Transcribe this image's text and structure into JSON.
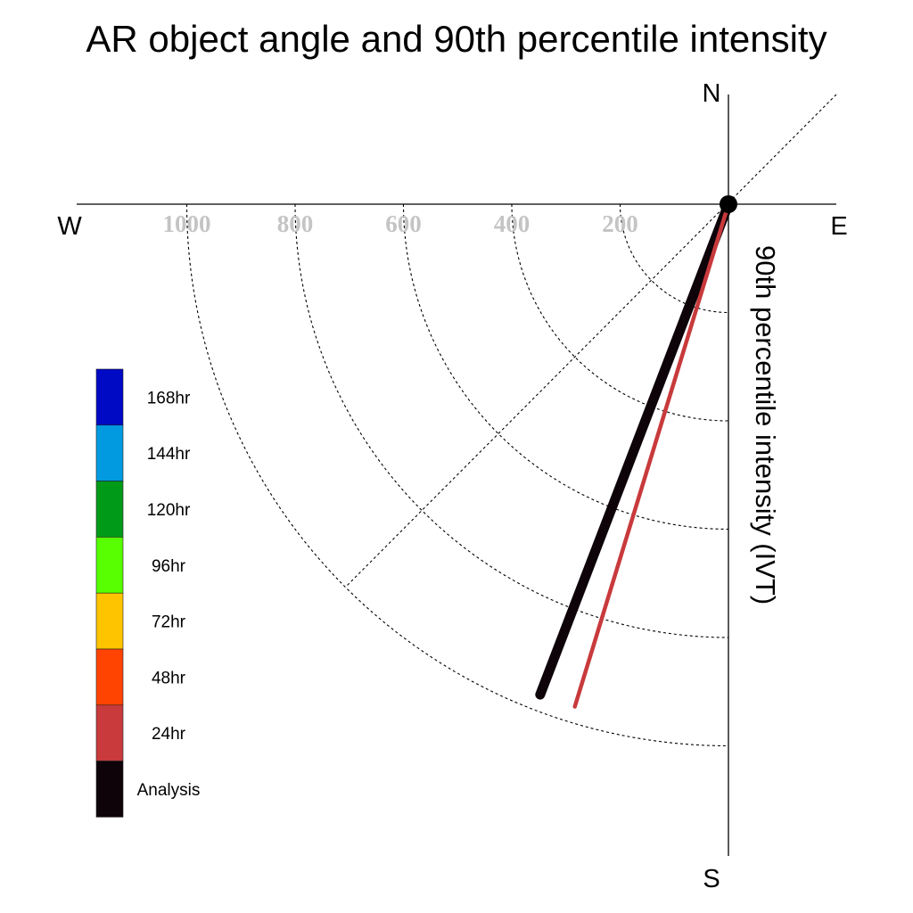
{
  "chart_data": {
    "type": "polar-quadrant",
    "title": "AR object angle and 90th percentile intensity",
    "ylabel": "90th percentile intensity (IVT)",
    "compass": {
      "north": "N",
      "south": "S",
      "east": "E",
      "west": "W"
    },
    "radial_ticks": [
      200,
      400,
      600,
      800,
      1000
    ],
    "radial_tick_labels": [
      "200",
      "400",
      "600",
      "800",
      "1000"
    ],
    "grid": true,
    "legend_position": "left",
    "series": [
      {
        "name": "Analysis",
        "angle_deg": 201,
        "intensity": 970,
        "color": "#0d0309"
      },
      {
        "name": "24hr",
        "angle_deg": 197,
        "intensity": 970,
        "color": "#c83a3c"
      }
    ],
    "legend": [
      {
        "label": "168hr",
        "color": "#0009c3"
      },
      {
        "label": "144hr",
        "color": "#019ae0"
      },
      {
        "label": "120hr",
        "color": "#009a19"
      },
      {
        "label": "96hr",
        "color": "#57ff00"
      },
      {
        "label": "72hr",
        "color": "#fec400"
      },
      {
        "label": "48hr",
        "color": "#ff4301"
      },
      {
        "label": "24hr",
        "color": "#c83a3c"
      },
      {
        "label": "Analysis",
        "color": "#0d0309"
      }
    ]
  }
}
